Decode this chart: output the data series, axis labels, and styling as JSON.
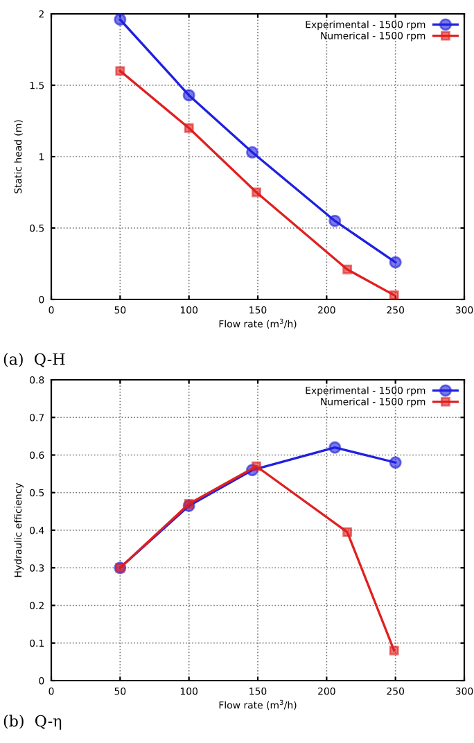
{
  "chart_data": [
    {
      "type": "line",
      "xlabel": "Flow rate (m$^{3}$/h)",
      "ylabel": "Static head (m)",
      "xlim": [
        0,
        300
      ],
      "ylim": [
        0,
        2
      ],
      "xticks": [
        0,
        50,
        100,
        150,
        200,
        250,
        300
      ],
      "yticks": [
        0,
        0.5,
        1,
        1.5,
        2
      ],
      "grid": true,
      "legend": "top right",
      "line_style": "solid",
      "annotations": [
        "(a)  Q-H"
      ],
      "series": [
        {
          "name": "Experimental - 1500 rpm",
          "color": "#2020e0",
          "marker": "circle",
          "x": [
            50,
            100,
            146,
            206,
            250
          ],
          "values": [
            1.96,
            1.43,
            1.03,
            0.55,
            0.26
          ]
        },
        {
          "name": "Numerical - 1500 rpm",
          "color": "#e02020",
          "marker": "square",
          "x": [
            50,
            100,
            149,
            215,
            249
          ],
          "values": [
            1.6,
            1.2,
            0.75,
            0.21,
            0.03
          ]
        }
      ]
    },
    {
      "type": "line",
      "xlabel": "Flow rate (m$^{3}$/h)",
      "ylabel": "Hydraulic efficiency",
      "xlim": [
        0,
        300
      ],
      "ylim": [
        0,
        0.8
      ],
      "xticks": [
        0,
        50,
        100,
        150,
        200,
        250,
        300
      ],
      "yticks": [
        0,
        0.1,
        0.2,
        0.3,
        0.4,
        0.5,
        0.6,
        0.7,
        0.8
      ],
      "grid": true,
      "legend": "top right",
      "line_style": "solid",
      "annotations": [
        "(b)  Q-η"
      ],
      "series": [
        {
          "name": "Experimental - 1500 rpm",
          "color": "#2020e0",
          "marker": "circle",
          "x": [
            50,
            100,
            146,
            206,
            250
          ],
          "values": [
            0.3,
            0.465,
            0.56,
            0.62,
            0.58
          ]
        },
        {
          "name": "Numerical - 1500 rpm",
          "color": "#e02020",
          "marker": "square",
          "x": [
            50,
            100,
            149,
            215,
            249
          ],
          "values": [
            0.3,
            0.47,
            0.57,
            0.395,
            0.08
          ]
        }
      ]
    }
  ]
}
